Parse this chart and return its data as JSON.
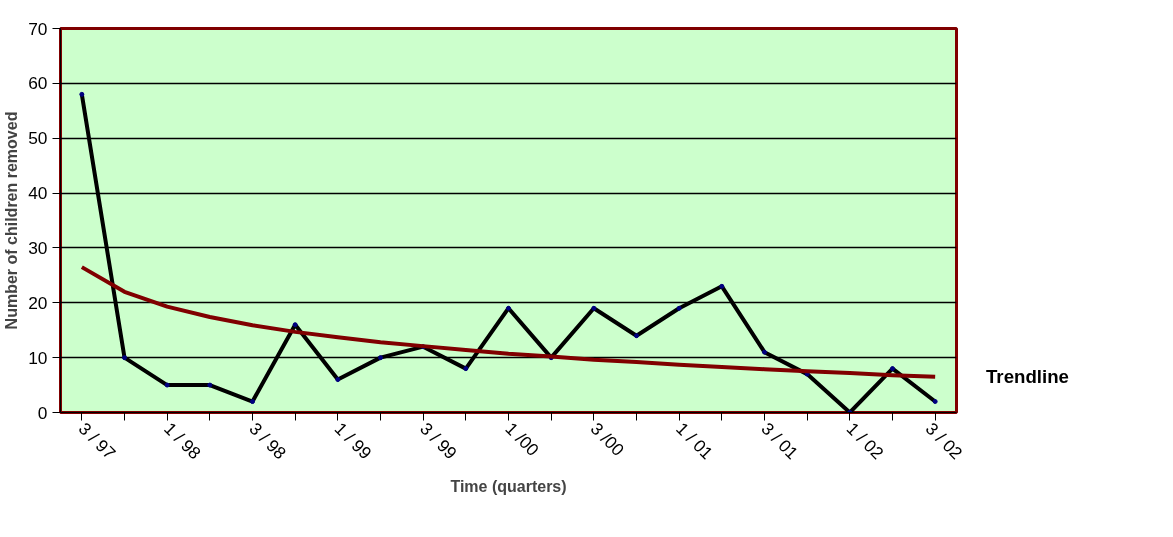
{
  "chart_data": {
    "type": "line",
    "xlabel": "Time (quarters)",
    "ylabel": "Number of children removed",
    "categories": [
      "3 / 97",
      null,
      "1 / 98",
      null,
      "3 / 98",
      null,
      "1 / 99",
      null,
      "3 / 99",
      null,
      "1 /00",
      null,
      "3 /00",
      null,
      "1 / 01",
      null,
      "3 / 01",
      null,
      "1 / 02",
      null,
      "3 / 02"
    ],
    "series": [
      {
        "color": "#000000",
        "marker": "circle",
        "values": [
          58,
          10,
          5,
          5,
          2,
          16,
          6,
          10,
          12,
          8,
          19,
          10,
          19,
          14,
          19,
          23,
          11,
          7,
          0,
          8,
          2
        ]
      },
      {
        "name": "Trendline",
        "color": "#800000",
        "marker": "none",
        "values": [
          26.5,
          22.0,
          19.3,
          17.4,
          15.9,
          14.7,
          13.7,
          12.8,
          12.1,
          11.4,
          10.7,
          10.2,
          9.6,
          9.2,
          8.7,
          8.3,
          7.9,
          7.5,
          7.2,
          6.8,
          6.5
        ]
      }
    ],
    "ylim": [
      0,
      70
    ],
    "yticks": [
      0,
      10,
      20,
      30,
      40,
      50,
      60,
      70
    ],
    "grid": "y",
    "line_style": "solid"
  }
}
